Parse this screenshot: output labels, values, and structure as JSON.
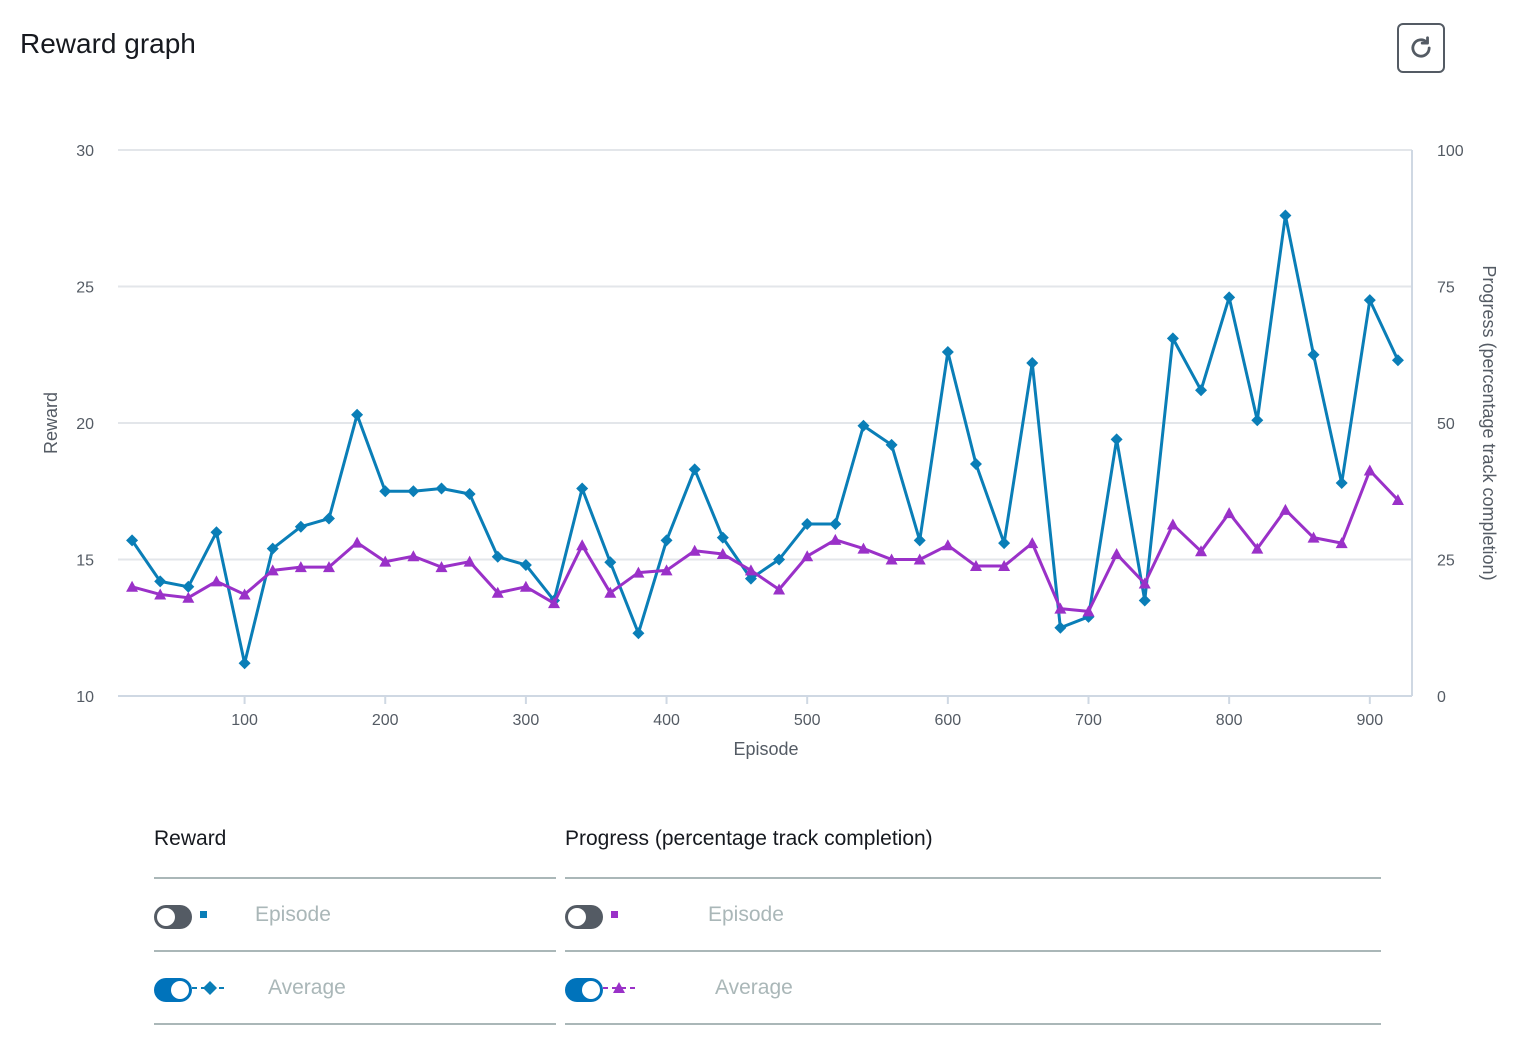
{
  "header": {
    "title": "Reward graph",
    "refresh_icon": "refresh-icon"
  },
  "chart_data": {
    "type": "line",
    "x_label": "Episode",
    "y_left_label": "Reward",
    "y_right_label": "Progress (percentage track completion)",
    "y_left_range": [
      10,
      30
    ],
    "y_right_range": [
      0,
      100
    ],
    "x_range": [
      10,
      930
    ],
    "y_left_ticks": [
      10,
      15,
      20,
      25,
      30
    ],
    "y_right_ticks": [
      0,
      25,
      50,
      75,
      100
    ],
    "x_ticks": [
      100,
      200,
      300,
      400,
      500,
      600,
      700,
      800,
      900
    ],
    "grid": true,
    "series": [
      {
        "name": "Average",
        "group": "Reward",
        "axis": "left",
        "color": "#0a7eb7",
        "marker": "diamond",
        "x": [
          20,
          40,
          60,
          80,
          100,
          120,
          140,
          160,
          180,
          200,
          220,
          240,
          260,
          280,
          300,
          320,
          340,
          360,
          380,
          400,
          420,
          440,
          460,
          480,
          500,
          520,
          540,
          560,
          580,
          600,
          620,
          640,
          660,
          680,
          700,
          720,
          740,
          760,
          780,
          800,
          820,
          840,
          860,
          880,
          900,
          920
        ],
        "values": [
          15.7,
          14.2,
          14.0,
          16.0,
          11.2,
          15.4,
          16.2,
          16.5,
          20.3,
          17.5,
          17.5,
          17.6,
          17.4,
          15.1,
          14.8,
          13.5,
          17.6,
          14.9,
          12.3,
          15.7,
          18.3,
          15.8,
          14.3,
          15.0,
          16.3,
          16.3,
          19.9,
          19.2,
          15.7,
          22.6,
          18.5,
          15.6,
          22.2,
          12.5,
          12.9,
          19.4,
          13.5,
          23.1,
          21.2,
          24.6,
          20.1,
          27.6,
          22.5,
          17.8,
          24.5,
          22.3
        ]
      },
      {
        "name": "Average",
        "group": "Progress (percentage track completion)",
        "axis": "right",
        "color": "#9a31c8",
        "marker": "triangle",
        "x": [
          20,
          40,
          60,
          80,
          100,
          120,
          140,
          160,
          180,
          200,
          220,
          240,
          260,
          280,
          300,
          320,
          340,
          360,
          380,
          400,
          420,
          440,
          460,
          480,
          500,
          520,
          540,
          560,
          580,
          600,
          620,
          640,
          660,
          680,
          700,
          720,
          740,
          760,
          780,
          800,
          820,
          840,
          860,
          880,
          900,
          920
        ],
        "values": [
          20.0,
          18.6,
          18.0,
          21.0,
          18.6,
          23.0,
          23.6,
          23.6,
          28.1,
          24.6,
          25.6,
          23.6,
          24.6,
          18.9,
          20.0,
          17.0,
          27.6,
          18.9,
          22.6,
          23.0,
          26.6,
          26.0,
          23.0,
          19.5,
          25.6,
          28.6,
          27.0,
          25.0,
          25.0,
          27.6,
          23.8,
          23.8,
          28.0,
          16.0,
          15.5,
          26.0,
          20.6,
          31.4,
          26.5,
          33.5,
          27.0,
          34.1,
          29.0,
          28.0,
          41.3,
          35.9
        ]
      }
    ]
  },
  "legend": {
    "reward": {
      "heading": "Reward",
      "rows": [
        {
          "label": "Episode",
          "toggle": "off",
          "color": "#0a7eb7",
          "marker": "square"
        },
        {
          "label": "Average",
          "toggle": "on",
          "color": "#0a7eb7",
          "marker": "diamond"
        }
      ]
    },
    "progress": {
      "heading": "Progress (percentage track completion)",
      "rows": [
        {
          "label": "Episode",
          "toggle": "off",
          "color": "#9a31c8",
          "marker": "square"
        },
        {
          "label": "Average",
          "toggle": "on",
          "color": "#9a31c8",
          "marker": "triangle"
        }
      ]
    }
  }
}
